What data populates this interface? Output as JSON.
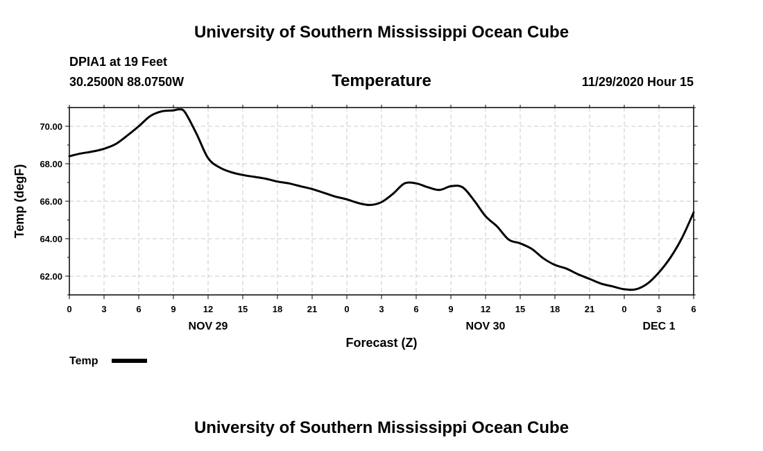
{
  "header": {
    "title": "University of Southern Mississippi Ocean Cube",
    "station": "DPIA1 at 19 Feet",
    "coords": "30.2500N 88.0750W",
    "datetime": "11/29/2020 Hour 15"
  },
  "footer": {
    "title": "University of Southern Mississippi Ocean Cube"
  },
  "legend": {
    "label": "Temp",
    "color": "#000000"
  },
  "chart_data": {
    "type": "line",
    "title": "Temperature",
    "xlabel": "Forecast (Z)",
    "ylabel": "Temp (degF)",
    "x_range_hours": [
      0,
      54
    ],
    "ylim": [
      61.0,
      71.0
    ],
    "grid": true,
    "legend_position": "bottom-left",
    "x_tick_labels": [
      "0",
      "3",
      "6",
      "9",
      "12",
      "15",
      "18",
      "21",
      "0",
      "3",
      "6",
      "9",
      "12",
      "15",
      "18",
      "21",
      "0",
      "3",
      "6"
    ],
    "y_tick_labels": [
      "62.00",
      "64.00",
      "66.00",
      "68.00",
      "70.00"
    ],
    "y_tick_values": [
      62,
      64,
      66,
      68,
      70
    ],
    "day_labels": [
      {
        "label": "NOV 29",
        "hour": 12
      },
      {
        "label": "NOV 30",
        "hour": 36
      },
      {
        "label": "DEC 1",
        "hour": 51
      }
    ],
    "series": [
      {
        "name": "Temp",
        "hours": [
          0,
          1,
          2,
          3,
          4,
          5,
          6,
          7,
          8,
          9,
          9.5,
          10,
          11,
          12,
          13,
          14,
          15,
          16,
          17,
          18,
          19,
          20,
          21,
          22,
          23,
          24,
          25,
          26,
          27,
          28,
          29,
          30,
          31,
          32,
          33,
          34,
          35,
          36,
          37,
          38,
          39,
          40,
          41,
          42,
          43,
          44,
          45,
          46,
          47,
          48,
          49,
          50,
          51,
          52,
          53,
          54
        ],
        "values": [
          68.4,
          68.55,
          68.65,
          68.8,
          69.05,
          69.5,
          70.0,
          70.55,
          70.8,
          70.85,
          70.9,
          70.75,
          69.6,
          68.3,
          67.8,
          67.55,
          67.4,
          67.3,
          67.2,
          67.05,
          66.95,
          66.8,
          66.65,
          66.45,
          66.25,
          66.1,
          65.9,
          65.8,
          65.95,
          66.4,
          66.95,
          66.95,
          66.75,
          66.6,
          66.8,
          66.75,
          66.05,
          65.2,
          64.65,
          63.95,
          63.75,
          63.45,
          62.95,
          62.6,
          62.4,
          62.1,
          61.85,
          61.6,
          61.45,
          61.3,
          61.3,
          61.6,
          62.2,
          63.0,
          64.05,
          65.4
        ]
      }
    ]
  }
}
